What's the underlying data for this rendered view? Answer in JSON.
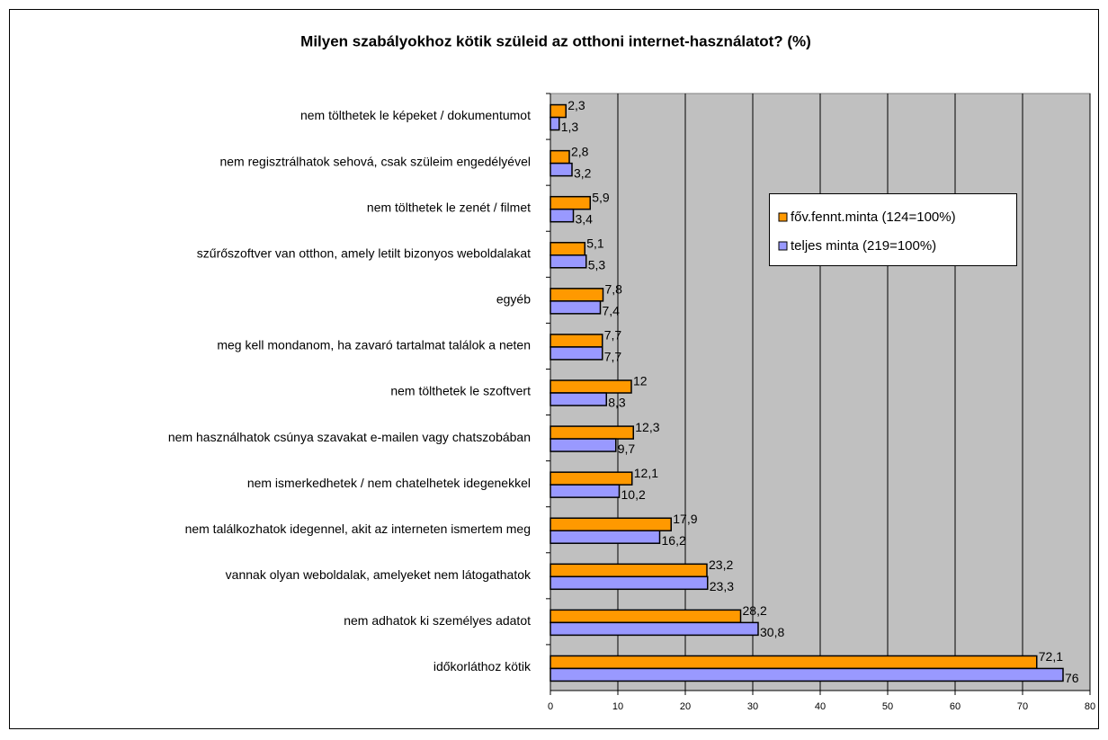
{
  "chart_data": {
    "type": "bar",
    "orientation": "horizontal",
    "title": "Milyen szabályokhoz kötik szüleid az otthoni internet-használatot? (%)",
    "categories": [
      "nem tölthetek le képeket / dokumentumot",
      "nem regisztrálhatok sehová, csak szüleim engedélyével",
      "nem tölthetek le zenét / filmet",
      "szűrőszoftver van otthon, amely letilt bizonyos weboldalakat",
      "egyéb",
      "meg kell mondanom, ha zavaró tartalmat találok a neten",
      "nem tölthetek le szoftvert",
      "nem használhatok csúnya szavakat e-mailen vagy chatszobában",
      "nem ismerkedhetek / nem chatelhetek idegenekkel",
      "nem találkozhatok idegennel, akit az interneten ismertem meg",
      "vannak olyan weboldalak, amelyeket nem látogathatok",
      "nem adhatok ki személyes adatot",
      "időkorláthoz kötik"
    ],
    "series": [
      {
        "name": "főv.fennt.minta (124=100%)",
        "color": "#ff9900",
        "values": [
          2.3,
          2.8,
          5.9,
          5.1,
          7.8,
          7.7,
          12,
          12.3,
          12.1,
          17.9,
          23.2,
          28.2,
          72.1
        ],
        "value_labels": [
          "2,3",
          "2,8",
          "5,9",
          "5,1",
          "7,8",
          "7,7",
          "12",
          "12,3",
          "12,1",
          "17,9",
          "23,2",
          "28,2",
          "72,1"
        ]
      },
      {
        "name": "teljes minta (219=100%)",
        "color": "#9999ff",
        "values": [
          1.3,
          3.2,
          3.4,
          5.3,
          7.4,
          7.7,
          8.3,
          9.7,
          10.2,
          16.2,
          23.3,
          30.8,
          76
        ],
        "value_labels": [
          "1,3",
          "3,2",
          "3,4",
          "5,3",
          "7,4",
          "7,7",
          "8,3",
          "9,7",
          "10,2",
          "16,2",
          "23,3",
          "30,8",
          "76"
        ]
      }
    ],
    "xlim": [
      0,
      80
    ],
    "xticks": [
      0,
      10,
      20,
      30,
      40,
      50,
      60,
      70,
      80
    ],
    "grid": true,
    "legend": "right"
  }
}
